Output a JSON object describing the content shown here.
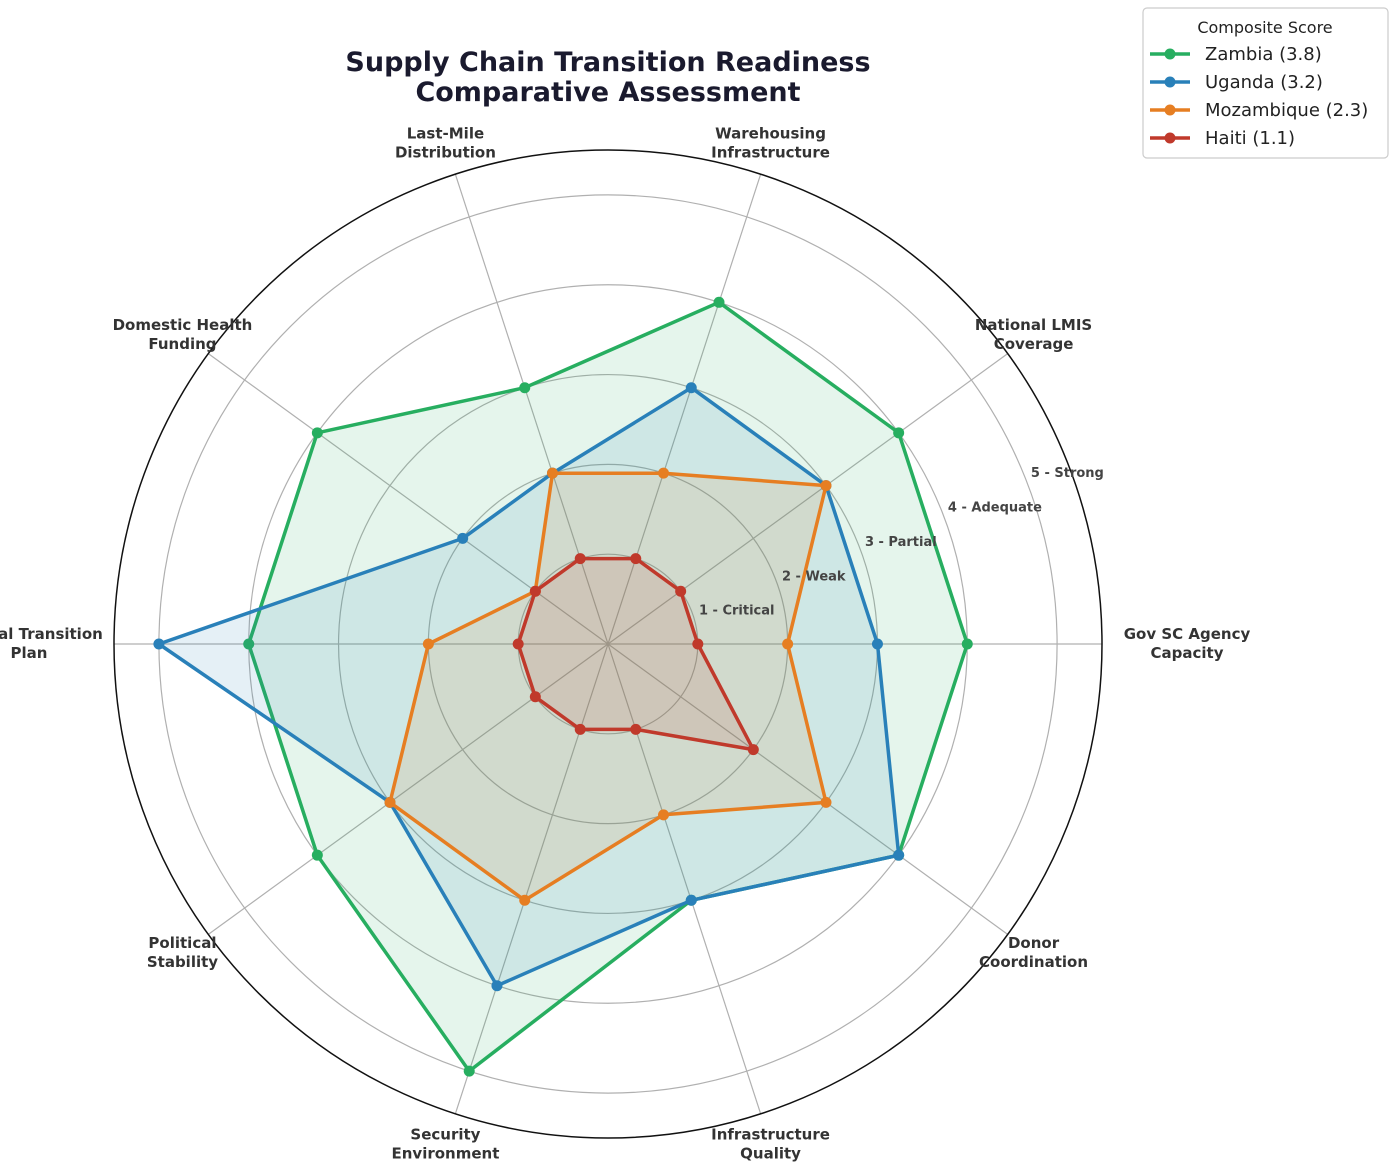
{
  "chart_data": {
    "type": "radar",
    "title": [
      "Supply Chain Transition Readiness",
      "Comparative Assessment"
    ],
    "categories": [
      [
        "Gov SC Agency",
        "Capacity"
      ],
      [
        "National LMIS",
        "Coverage"
      ],
      [
        "Warehousing",
        "Infrastructure"
      ],
      [
        "Last-Mile",
        "Distribution"
      ],
      [
        "Domestic Health",
        "Funding"
      ],
      [
        "Formal Transition",
        "Plan"
      ],
      [
        "Political",
        "Stability"
      ],
      [
        "Security",
        "Environment"
      ],
      [
        "Infrastructure",
        "Quality"
      ],
      [
        "Donor",
        "Coordination"
      ]
    ],
    "rlim": [
      0,
      5.5
    ],
    "ticks": [
      {
        "value": 1,
        "label": "1 - Critical"
      },
      {
        "value": 2,
        "label": "2 - Weak"
      },
      {
        "value": 3,
        "label": "3 - Partial"
      },
      {
        "value": 4,
        "label": "4 - Adequate"
      },
      {
        "value": 5,
        "label": "5 - Strong"
      }
    ],
    "legend": {
      "title": "Composite Score",
      "placement": "top-right"
    },
    "grid": true,
    "series": [
      {
        "name": "Zambia (3.8)",
        "color": "#27ae60",
        "values": [
          4,
          4,
          4,
          3,
          4,
          4,
          4,
          5,
          3,
          4
        ]
      },
      {
        "name": "Uganda (3.2)",
        "color": "#2980b9",
        "values": [
          3,
          3,
          3,
          2,
          2,
          5,
          3,
          4,
          3,
          4
        ]
      },
      {
        "name": "Mozambique (2.3)",
        "color": "#e67e22",
        "values": [
          2,
          3,
          2,
          2,
          1,
          2,
          3,
          3,
          2,
          3
        ]
      },
      {
        "name": "Haiti (1.1)",
        "color": "#c0392b",
        "values": [
          1,
          1,
          1,
          1,
          1,
          1,
          1,
          1,
          1,
          2
        ]
      }
    ]
  }
}
